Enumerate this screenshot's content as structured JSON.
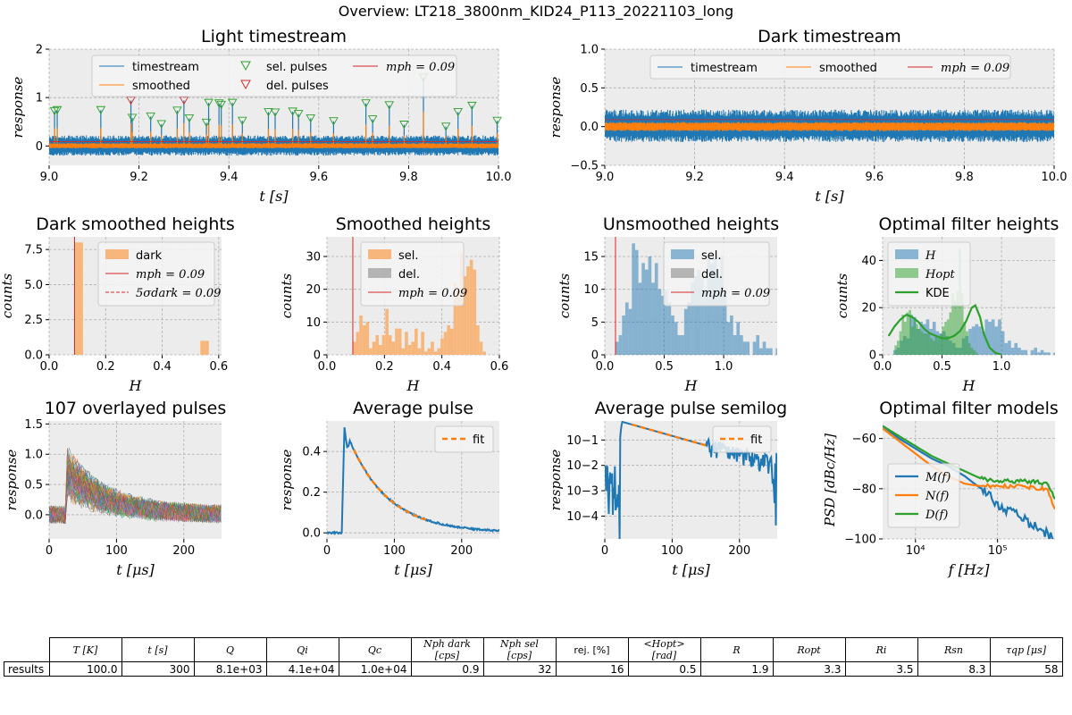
{
  "suptitle": "Overview: LT218_3800nm_KID24_P113_20221103_long",
  "colors": {
    "blue": "#1f77b4",
    "orange": "#ff7f0e",
    "green": "#2ca02c",
    "red": "#d62728",
    "gray": "#7f7f7f",
    "panel": "#ececec",
    "grid": "#b0b0b0"
  },
  "chart_data": [
    {
      "id": "light",
      "type": "line",
      "title": "Light timestream",
      "xlabel": "t [s]",
      "ylabel": "response",
      "xlim": [
        9.0,
        10.0
      ],
      "ylim": [
        -0.4,
        2.0
      ],
      "xticks": [
        9.0,
        9.2,
        9.4,
        9.6,
        9.8,
        10.0
      ],
      "xtick_labels": [
        "9.0",
        "9.2",
        "9.4",
        "9.6",
        "9.8",
        "10.0"
      ],
      "yticks": [
        0,
        1,
        2
      ],
      "ytick_labels": [
        "0",
        "1",
        "2"
      ],
      "legend": [
        "timestream",
        "smoothed",
        "sel. pulses",
        "del. pulses",
        "mph = 0.09"
      ],
      "legend_position": "top-center",
      "baseline_timestream": {
        "mean": 0.0,
        "band": [
          -0.2,
          0.22
        ]
      },
      "baseline_smoothed": {
        "mean": 0.0,
        "band": [
          -0.05,
          0.06
        ]
      },
      "mph": 0.09,
      "selected_pulses": [
        {
          "t": 9.012,
          "h": 0.72
        },
        {
          "t": 9.018,
          "h": 0.74
        },
        {
          "t": 9.115,
          "h": 0.74
        },
        {
          "t": 9.185,
          "h": 0.58
        },
        {
          "t": 9.226,
          "h": 0.61
        },
        {
          "t": 9.25,
          "h": 0.45
        },
        {
          "t": 9.285,
          "h": 0.73
        },
        {
          "t": 9.312,
          "h": 0.57
        },
        {
          "t": 9.35,
          "h": 0.48
        },
        {
          "t": 9.355,
          "h": 0.89
        },
        {
          "t": 9.378,
          "h": 0.88
        },
        {
          "t": 9.383,
          "h": 0.85
        },
        {
          "t": 9.408,
          "h": 0.89
        },
        {
          "t": 9.43,
          "h": 0.52
        },
        {
          "t": 9.488,
          "h": 0.7
        },
        {
          "t": 9.503,
          "h": 0.69
        },
        {
          "t": 9.542,
          "h": 0.71
        },
        {
          "t": 9.555,
          "h": 0.66
        },
        {
          "t": 9.582,
          "h": 0.57
        },
        {
          "t": 9.633,
          "h": 0.51
        },
        {
          "t": 9.705,
          "h": 0.88
        },
        {
          "t": 9.72,
          "h": 0.55
        },
        {
          "t": 9.757,
          "h": 0.84
        },
        {
          "t": 9.79,
          "h": 0.44
        },
        {
          "t": 9.833,
          "h": 1.41
        },
        {
          "t": 9.883,
          "h": 0.4
        },
        {
          "t": 9.91,
          "h": 0.7
        },
        {
          "t": 9.941,
          "h": 0.83
        },
        {
          "t": 9.997,
          "h": 0.52
        }
      ],
      "deleted_pulses": [
        {
          "t": 9.182,
          "h": 0.94
        },
        {
          "t": 9.3,
          "h": 0.94
        }
      ]
    },
    {
      "id": "dark",
      "type": "line",
      "title": "Dark timestream",
      "xlabel": "t [s]",
      "ylabel": "response",
      "xlim": [
        9.0,
        10.0
      ],
      "ylim": [
        -0.5,
        1.0
      ],
      "xticks": [
        9.0,
        9.2,
        9.4,
        9.6,
        9.8,
        10.0
      ],
      "xtick_labels": [
        "9.0",
        "9.2",
        "9.4",
        "9.6",
        "9.8",
        "10.0"
      ],
      "yticks": [
        -0.5,
        0.0,
        0.5,
        1.0
      ],
      "ytick_labels": [
        "−0.5",
        "0.0",
        "0.5",
        "1.0"
      ],
      "legend": [
        "timestream",
        "smoothed",
        "mph = 0.09"
      ],
      "legend_position": "top-center",
      "baseline_timestream": {
        "mean": 0.0,
        "band": [
          -0.2,
          0.22
        ]
      },
      "baseline_smoothed": {
        "mean": 0.0,
        "band": [
          -0.06,
          0.06
        ]
      },
      "mph": 0.09
    },
    {
      "id": "darkh",
      "type": "bar",
      "title": "Dark smoothed heights",
      "xlabel": "H",
      "ylabel": "counts",
      "xlim": [
        0,
        0.61
      ],
      "ylim": [
        0,
        8.4
      ],
      "xticks": [
        0.0,
        0.2,
        0.4,
        0.6
      ],
      "xtick_labels": [
        "0.0",
        "0.2",
        "0.4",
        "0.6"
      ],
      "yticks": [
        0,
        2.5,
        5.0,
        7.5
      ],
      "ytick_labels": [
        "0.0",
        "2.5",
        "5.0",
        "7.5"
      ],
      "legend": [
        "dark",
        "mph = 0.09",
        "5σdark = 0.09"
      ],
      "legend_position": "top-right",
      "bins": [
        {
          "x0": 0.09,
          "x1": 0.12,
          "v": 8
        },
        {
          "x0": 0.535,
          "x1": 0.565,
          "v": 1
        }
      ],
      "mph": 0.09,
      "five_sigma_dark": 0.09
    },
    {
      "id": "smh",
      "type": "bar",
      "title": "Smoothed heights",
      "xlabel": "H",
      "ylabel": "counts",
      "xlim": [
        0,
        0.6
      ],
      "ylim": [
        0,
        36
      ],
      "xticks": [
        0.0,
        0.2,
        0.4,
        0.6
      ],
      "xtick_labels": [
        "0.0",
        "0.2",
        "0.4",
        "0.6"
      ],
      "yticks": [
        0,
        10,
        20,
        30
      ],
      "ytick_labels": [
        "0",
        "10",
        "20",
        "30"
      ],
      "legend": [
        "sel.",
        "del.",
        "mph = 0.09"
      ],
      "legend_position": "top-right",
      "bin_start": 0.09,
      "bin_width": 0.0113,
      "values": [
        4,
        7,
        12,
        9,
        10,
        2,
        4,
        6,
        3,
        6,
        14,
        6,
        4,
        8,
        8,
        2,
        7,
        3,
        4,
        8,
        2,
        7,
        1,
        2,
        4,
        1,
        2,
        5,
        7,
        9,
        8,
        22,
        20,
        31,
        24,
        27,
        29,
        26,
        9,
        4,
        1
      ],
      "mph": 0.09
    },
    {
      "id": "unh",
      "type": "bar",
      "title": "Unsmoothed heights",
      "xlabel": "H",
      "ylabel": "counts",
      "xlim": [
        0,
        1.45
      ],
      "ylim": [
        0,
        18
      ],
      "xticks": [
        0.0,
        0.5,
        1.0
      ],
      "xtick_labels": [
        "0.0",
        "0.5",
        "1.0"
      ],
      "yticks": [
        0,
        5,
        10,
        15
      ],
      "ytick_labels": [
        "0",
        "5",
        "10",
        "15"
      ],
      "legend": [
        "sel.",
        "del.",
        "mph = 0.09"
      ],
      "legend_position": "top-right",
      "bin_start": 0.09,
      "bin_width": 0.0275,
      "values": [
        2,
        3,
        6,
        8,
        7,
        17,
        16,
        11,
        14,
        13,
        15,
        11,
        14,
        10,
        9,
        10,
        8,
        6,
        5,
        3,
        3,
        7,
        8,
        11,
        12,
        13,
        12,
        10,
        15,
        14,
        15,
        12,
        15,
        10,
        5,
        6,
        3,
        5,
        3,
        2,
        2,
        0,
        2,
        3,
        1,
        2,
        1,
        1,
        0,
        1
      ],
      "mph": 0.09
    },
    {
      "id": "opth",
      "type": "bar",
      "title": "Optimal filter heights",
      "xlabel": "H",
      "ylabel": "counts",
      "xlim": [
        0,
        1.45
      ],
      "ylim": [
        0,
        50
      ],
      "xticks": [
        0.0,
        0.5,
        1.0
      ],
      "xtick_labels": [
        "0.0",
        "0.5",
        "1.0"
      ],
      "yticks": [
        0,
        20,
        40
      ],
      "ytick_labels": [
        "0",
        "20",
        "40"
      ],
      "legend": [
        "H",
        "Hopt",
        "KDE"
      ],
      "legend_position": "top-left",
      "H": {
        "bin_start": 0.09,
        "bin_width": 0.0275,
        "values": [
          2,
          3,
          6,
          8,
          7,
          17,
          16,
          11,
          14,
          13,
          15,
          11,
          14,
          10,
          9,
          10,
          8,
          6,
          5,
          3,
          3,
          7,
          8,
          11,
          12,
          13,
          12,
          10,
          15,
          14,
          15,
          12,
          15,
          10,
          5,
          6,
          3,
          5,
          3,
          2,
          2,
          0,
          2,
          3,
          1,
          2,
          1,
          1,
          0,
          1
        ]
      },
      "Hopt": {
        "bin_start": 0.1,
        "bin_width": 0.02,
        "values": [
          4,
          6,
          10,
          17,
          14,
          18,
          19,
          12,
          15,
          13,
          11,
          10,
          9,
          9,
          9,
          7,
          6,
          8,
          7,
          9,
          12,
          14,
          15,
          18,
          26,
          23,
          27,
          45,
          26,
          14,
          10,
          5,
          3,
          2,
          1
        ]
      },
      "kde": {
        "x": [
          0.05,
          0.1,
          0.15,
          0.2,
          0.25,
          0.3,
          0.35,
          0.4,
          0.45,
          0.5,
          0.55,
          0.6,
          0.65,
          0.7,
          0.75,
          0.78,
          0.82,
          0.85,
          0.9,
          0.95,
          1.0
        ],
        "y": [
          8,
          12,
          15,
          17,
          16,
          14,
          11,
          9,
          8,
          7,
          7,
          8,
          10,
          14,
          20,
          21,
          16,
          9,
          3,
          0.8,
          0.1
        ]
      }
    },
    {
      "id": "overlay",
      "type": "line",
      "title": "107 overlayed pulses",
      "xlabel": "t [μs]",
      "ylabel": "response",
      "xlim": [
        0,
        256
      ],
      "ylim": [
        -0.4,
        1.55
      ],
      "xticks": [
        0,
        100,
        200
      ],
      "xtick_labels": [
        "0",
        "100",
        "200"
      ],
      "yticks": [
        0,
        0.5,
        1.0,
        1.5
      ],
      "ytick_labels": [
        "0.0",
        "0.5",
        "1.0",
        "1.5"
      ],
      "n_pulses": 107,
      "rise_t": 25
    },
    {
      "id": "avg",
      "type": "line",
      "title": "Average pulse",
      "xlabel": "t [μs]",
      "ylabel": "response",
      "xlim": [
        0,
        256
      ],
      "ylim": [
        -0.03,
        0.55
      ],
      "xticks": [
        0,
        100,
        200
      ],
      "xtick_labels": [
        "0",
        "100",
        "200"
      ],
      "yticks": [
        0,
        0.2,
        0.4
      ],
      "ytick_labels": [
        "0.0",
        "0.2",
        "0.4"
      ],
      "legend": [
        "fit"
      ],
      "legend_position": "top-right",
      "pulse": {
        "t0": 26,
        "peak": 0.52,
        "tau": 58
      },
      "fit_range": [
        40,
        150
      ]
    },
    {
      "id": "avglog",
      "type": "line",
      "title": "Average pulse semilog",
      "xlabel": "t [μs]",
      "ylabel": "response",
      "xlim": [
        0,
        256
      ],
      "ylim_log10": [
        -4.9,
        -0.25
      ],
      "xticks": [
        0,
        100,
        200
      ],
      "xtick_labels": [
        "0",
        "100",
        "200"
      ],
      "yticks_log10": [
        -4,
        -3,
        -2,
        -1
      ],
      "ytick_labels": [
        "10−4",
        "10−3",
        "10−2",
        "10−1"
      ],
      "legend": [
        "fit"
      ],
      "legend_position": "top-right",
      "pulse": {
        "t0": 26,
        "peak": 0.52,
        "tau": 58
      },
      "fit_range": [
        40,
        150
      ]
    },
    {
      "id": "psd",
      "type": "line",
      "title": "Optimal filter models",
      "xlabel": "f [Hz]",
      "ylabel": "PSD [dBc/Hz]",
      "xlim_log10": [
        3.6,
        5.7
      ],
      "ylim": [
        -100,
        -53
      ],
      "xticks_log10": [
        4,
        5
      ],
      "xtick_labels": [
        "10⁴",
        "10⁵"
      ],
      "yticks": [
        -100,
        -80,
        -60
      ],
      "ytick_labels": [
        "−100",
        "−80",
        "−60"
      ],
      "legend": [
        "M(f)",
        "N(f)",
        "D(f)"
      ],
      "legend_position": "center-left",
      "series": [
        {
          "name": "M(f)",
          "x_log10": [
            3.6,
            3.8,
            4.0,
            4.2,
            4.4,
            4.6,
            4.8,
            5.0,
            5.2,
            5.4,
            5.6,
            5.7
          ],
          "y": [
            -55,
            -60,
            -64,
            -68,
            -71,
            -75,
            -80,
            -86,
            -90,
            -94,
            -98,
            -100
          ]
        },
        {
          "name": "N(f)",
          "x_log10": [
            3.6,
            3.8,
            4.0,
            4.2,
            4.4,
            4.6,
            4.8,
            5.0,
            5.2,
            5.4,
            5.6,
            5.7
          ],
          "y": [
            -56,
            -61,
            -66,
            -71,
            -75,
            -78,
            -79,
            -79,
            -79,
            -79.5,
            -80,
            -88
          ]
        },
        {
          "name": "D(f)",
          "x_log10": [
            3.6,
            3.8,
            4.0,
            4.2,
            4.4,
            4.6,
            4.8,
            5.0,
            5.2,
            5.4,
            5.6,
            5.7
          ],
          "y": [
            -55,
            -59,
            -63,
            -67,
            -70,
            -73,
            -76,
            -77,
            -77,
            -77,
            -78,
            -84
          ]
        }
      ]
    }
  ],
  "table": {
    "row_label": "results",
    "headers": [
      "T [K]",
      "t [s]",
      "Q",
      "Qi",
      "Qc",
      "Nph dark [cps]",
      "Nph sel [cps]",
      "rej. [%]",
      "<Hopt> [rad]",
      "R",
      "Ropt",
      "Ri",
      "Rsn",
      "τqp [μs]"
    ],
    "values": [
      "100.0",
      "300",
      "8.1e+03",
      "4.1e+04",
      "1.0e+04",
      "0.9",
      "32",
      "16",
      "0.5",
      "1.9",
      "3.3",
      "3.5",
      "8.3",
      "58"
    ]
  }
}
